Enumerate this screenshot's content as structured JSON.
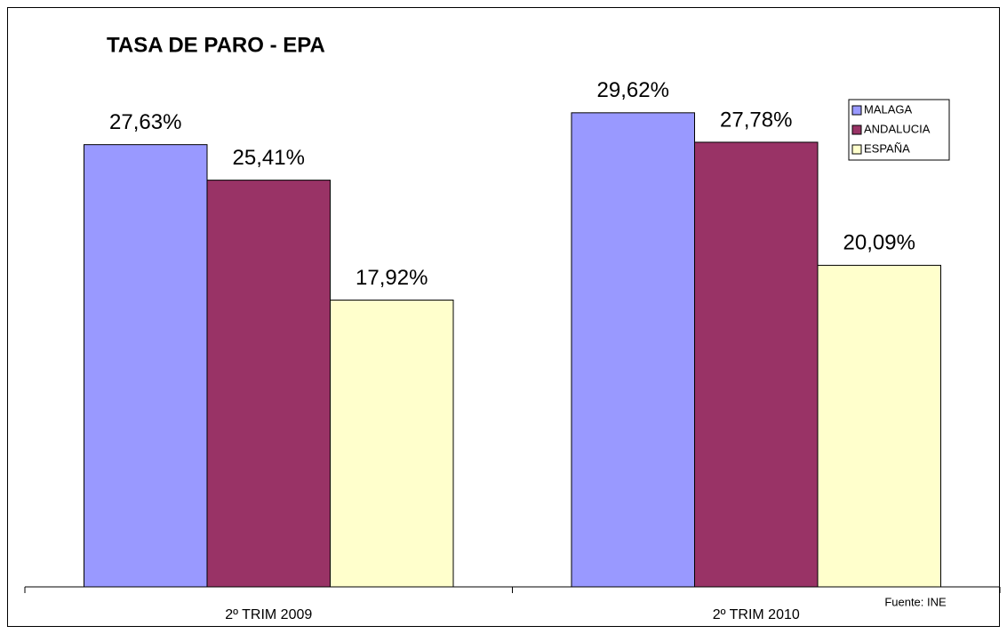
{
  "chart_data": {
    "type": "bar",
    "title": "TASA DE PARO - EPA",
    "categories": [
      "2º TRIM 2009",
      "2º TRIM 2010"
    ],
    "series": [
      {
        "name": "MALAGA",
        "color": "#9999ff",
        "values": [
          27.63,
          29.62
        ],
        "value_labels": [
          "27,63%",
          "29,62%"
        ]
      },
      {
        "name": "ANDALUCIA",
        "color": "#993366",
        "values": [
          25.41,
          27.78
        ],
        "value_labels": [
          "25,41%",
          "27,78%"
        ]
      },
      {
        "name": "ESPAÑA",
        "color": "#ffffcc",
        "values": [
          17.92,
          20.09
        ],
        "value_labels": [
          "17,92%",
          "20,09%"
        ]
      }
    ],
    "ylim": [
      0,
      35
    ],
    "legend": "top-right",
    "source": "Fuente: INE"
  }
}
